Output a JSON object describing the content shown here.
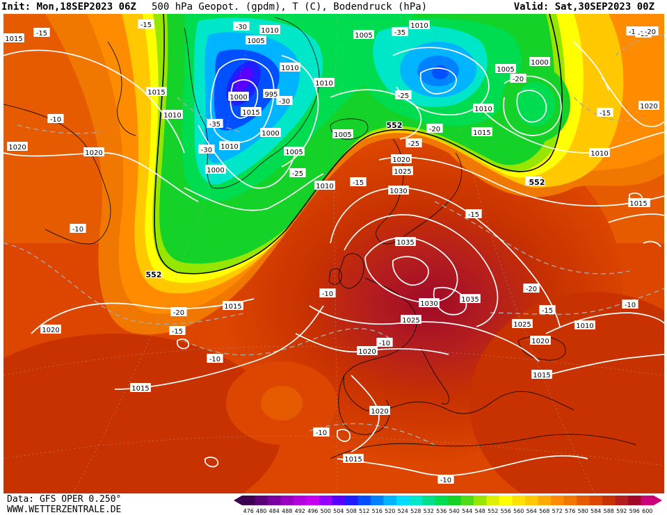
{
  "header": {
    "init": "Init: Mon,18SEP2023 06Z",
    "fields": "500 hPa Geopot. (gpdm), T (C), Bodendruck (hPa)",
    "valid": "Valid: Sat,30SEP2023 00Z"
  },
  "footer": {
    "data_source": "Data: GFS OPER 0.250°",
    "website": "WWW.WETTERZENTRALE.DE"
  },
  "colorbar": {
    "labels": [
      "476",
      "480",
      "484",
      "488",
      "492",
      "496",
      "500",
      "504",
      "508",
      "512",
      "516",
      "520",
      "524",
      "528",
      "532",
      "536",
      "540",
      "544",
      "548",
      "552",
      "556",
      "560",
      "564",
      "568",
      "572",
      "576",
      "580",
      "584",
      "588",
      "592",
      "596",
      "600"
    ],
    "colors": [
      "#3d0050",
      "#5a0078",
      "#7a00a0",
      "#9a00c0",
      "#b400dc",
      "#c800f0",
      "#9600ff",
      "#5a00ff",
      "#1e1eff",
      "#0050ff",
      "#0082ff",
      "#00b4ff",
      "#00dcff",
      "#00e6c8",
      "#00e08c",
      "#00dc50",
      "#14d228",
      "#50dc14",
      "#96e600",
      "#dcf000",
      "#ffff00",
      "#ffe100",
      "#ffc800",
      "#ffaa00",
      "#ff8c00",
      "#f07800",
      "#e65a00",
      "#dc4600",
      "#c83200",
      "#b41e1e",
      "#a00a28",
      "#cc0077"
    ]
  },
  "isobars": [
    {
      "text": "1015",
      "pos": "atlantic-nw"
    },
    {
      "text": "1015",
      "pos": "greenland-sw"
    },
    {
      "text": "1010",
      "pos": "greenland-w"
    },
    {
      "text": "1020",
      "pos": "canada-e"
    },
    {
      "text": "1020",
      "pos": "labrador"
    },
    {
      "text": "1010",
      "pos": "greenland-n1"
    },
    {
      "text": "1005",
      "pos": "greenland-n2"
    },
    {
      "text": "1010",
      "pos": "greenland-c1"
    },
    {
      "text": "1000",
      "pos": "greenland-low"
    },
    {
      "text": "995",
      "pos": "greenland-low2"
    },
    {
      "text": "1015",
      "pos": "greenland-c2"
    },
    {
      "text": "1000",
      "pos": "greenland-c3"
    },
    {
      "text": "1010",
      "pos": "greenland-c4"
    },
    {
      "text": "1000",
      "pos": "greenland-s1"
    },
    {
      "text": "1005",
      "pos": "greenland-e1"
    },
    {
      "text": "1010",
      "pos": "iceland-n"
    },
    {
      "text": "1010",
      "pos": "iceland"
    },
    {
      "text": "1005",
      "pos": "barents-w"
    },
    {
      "text": "1005",
      "pos": "norw-sea"
    },
    {
      "text": "1010",
      "pos": "svalbard"
    },
    {
      "text": "1005",
      "pos": "kara-1"
    },
    {
      "text": "1000",
      "pos": "kara-2"
    },
    {
      "text": "1010",
      "pos": "lapland"
    },
    {
      "text": "1015",
      "pos": "finland"
    },
    {
      "text": "1010",
      "pos": "urals"
    },
    {
      "text": "1020",
      "pos": "nscand"
    },
    {
      "text": "1025",
      "pos": "scand"
    },
    {
      "text": "1030",
      "pos": "sscand"
    },
    {
      "text": "1035",
      "pos": "northsea"
    },
    {
      "text": "1035",
      "pos": "poland"
    },
    {
      "text": "1030",
      "pos": "alps"
    },
    {
      "text": "1025",
      "pos": "france"
    },
    {
      "text": "1020",
      "pos": "iberia-n"
    },
    {
      "text": "1020",
      "pos": "iberia-s"
    },
    {
      "text": "1015",
      "pos": "atlantic-c"
    },
    {
      "text": "1015",
      "pos": "atlantic-s"
    },
    {
      "text": "1020",
      "pos": "atlantic-w"
    },
    {
      "text": "1015",
      "pos": "med-s"
    },
    {
      "text": "1025",
      "pos": "balkans"
    },
    {
      "text": "1020",
      "pos": "turkey"
    },
    {
      "text": "1010",
      "pos": "caspian"
    },
    {
      "text": "1015",
      "pos": "russia-e"
    },
    {
      "text": "1020",
      "pos": "siberia"
    },
    {
      "text": "1015",
      "pos": "mideast"
    },
    {
      "text": "1015",
      "pos": "kazakh"
    }
  ],
  "temperatures": [
    "-15",
    "-15",
    "-30",
    "-35",
    "-30",
    "-35",
    "-25",
    "-25",
    "-20",
    "-20",
    "-15",
    "-15",
    "-25",
    "-25",
    "-30",
    "-15",
    "-10",
    "-10",
    "-20",
    "-15",
    "-10",
    "-15",
    "-10",
    "-10",
    "-20",
    "-15",
    "-10",
    "-10",
    "-10",
    "-15",
    "-20"
  ],
  "height_labels": [
    "552",
    "552",
    "552"
  ]
}
